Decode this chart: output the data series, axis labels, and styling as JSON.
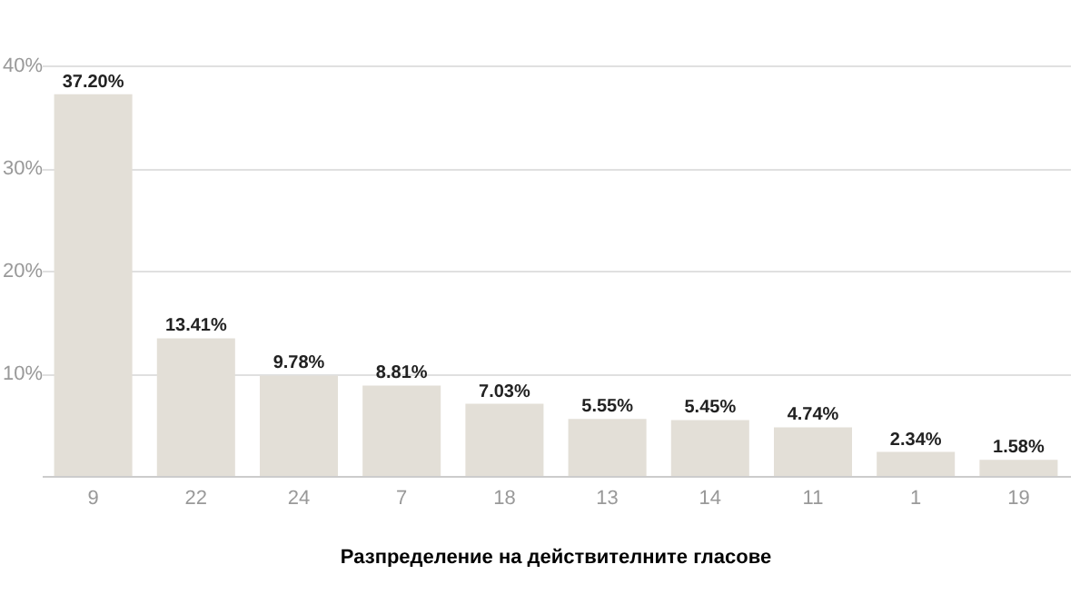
{
  "chart_data": {
    "type": "bar",
    "xlabel": "Разпределение на действителните гласове",
    "categories": [
      "9",
      "22",
      "24",
      "7",
      "18",
      "13",
      "14",
      "11",
      "1",
      "19"
    ],
    "values": [
      37.2,
      13.41,
      9.78,
      8.81,
      7.03,
      5.55,
      5.45,
      4.74,
      2.34,
      1.58
    ],
    "value_labels": [
      "37.20%",
      "13.41%",
      "9.78%",
      "8.81%",
      "7.03%",
      "5.55%",
      "5.45%",
      "4.74%",
      "2.34%",
      "1.58%"
    ],
    "color": "#e3dfd7",
    "ylim": [
      0,
      40
    ],
    "yticks": [
      {
        "value": 10,
        "label": "10%"
      },
      {
        "value": 20,
        "label": "20%"
      },
      {
        "value": 30,
        "label": "30%"
      },
      {
        "value": 40,
        "label": "40%"
      }
    ],
    "grid": true
  }
}
